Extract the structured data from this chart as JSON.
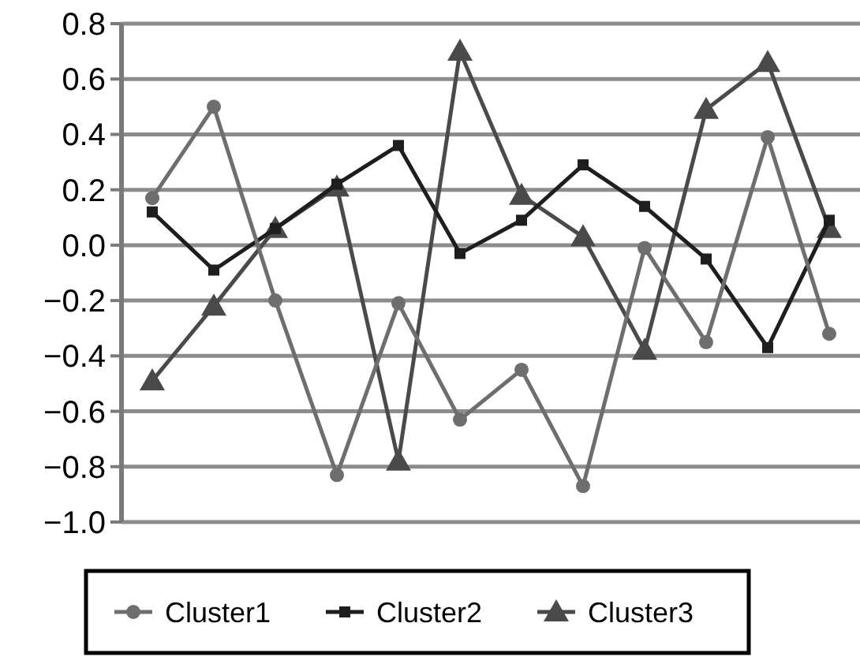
{
  "chart_data": {
    "type": "line",
    "categories": [
      null,
      null,
      null,
      null,
      null,
      null,
      null,
      null,
      null,
      null,
      null,
      null
    ],
    "series": [
      {
        "name": "Cluster1",
        "color": "#6e6e6e",
        "marker": "circle",
        "values": [
          0.17,
          0.5,
          -0.2,
          -0.83,
          -0.21,
          -0.63,
          -0.45,
          -0.87,
          -0.01,
          -0.35,
          0.39,
          -0.32
        ]
      },
      {
        "name": "Cluster2",
        "color": "#1e1e1e",
        "marker": "square",
        "values": [
          0.12,
          -0.09,
          0.06,
          0.22,
          0.36,
          -0.03,
          0.09,
          0.29,
          0.14,
          -0.05,
          -0.37,
          0.09
        ]
      },
      {
        "name": "Cluster3",
        "color": "#4a4a4a",
        "marker": "triangle",
        "values": [
          -0.49,
          -0.22,
          0.06,
          0.21,
          -0.78,
          0.7,
          0.18,
          0.03,
          -0.38,
          0.49,
          0.66,
          0.06
        ]
      }
    ],
    "ylim": [
      -1.0,
      0.8
    ],
    "yticks": [
      {
        "value": -1.0,
        "label": "−1.0"
      },
      {
        "value": -0.8,
        "label": "−0.8"
      },
      {
        "value": -0.6,
        "label": "−0.6"
      },
      {
        "value": -0.4,
        "label": "−0.4"
      },
      {
        "value": -0.2,
        "label": "−0.2"
      },
      {
        "value": 0,
        "label": "0.0"
      },
      {
        "value": 0.2,
        "label": "0.2"
      },
      {
        "value": 0.4,
        "label": "0.4"
      },
      {
        "value": 0.6,
        "label": "0.6"
      },
      {
        "value": 0.8,
        "label": "0.8"
      }
    ],
    "grid": "y",
    "legend": "bottom"
  }
}
